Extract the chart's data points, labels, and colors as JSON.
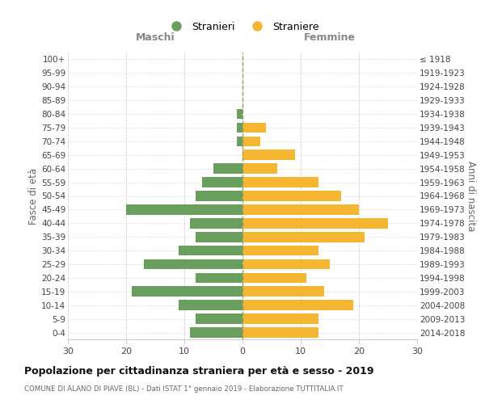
{
  "age_groups": [
    "0-4",
    "5-9",
    "10-14",
    "15-19",
    "20-24",
    "25-29",
    "30-34",
    "35-39",
    "40-44",
    "45-49",
    "50-54",
    "55-59",
    "60-64",
    "65-69",
    "70-74",
    "75-79",
    "80-84",
    "85-89",
    "90-94",
    "95-99",
    "100+"
  ],
  "birth_years": [
    "2014-2018",
    "2009-2013",
    "2004-2008",
    "1999-2003",
    "1994-1998",
    "1989-1993",
    "1984-1988",
    "1979-1983",
    "1974-1978",
    "1969-1973",
    "1964-1968",
    "1959-1963",
    "1954-1958",
    "1949-1953",
    "1944-1948",
    "1939-1943",
    "1934-1938",
    "1929-1933",
    "1924-1928",
    "1919-1923",
    "≤ 1918"
  ],
  "maschi": [
    9,
    8,
    11,
    19,
    8,
    17,
    11,
    8,
    9,
    20,
    8,
    7,
    5,
    0,
    1,
    1,
    1,
    0,
    0,
    0,
    0
  ],
  "femmine": [
    13,
    13,
    19,
    14,
    11,
    15,
    13,
    21,
    25,
    20,
    17,
    13,
    6,
    9,
    3,
    4,
    0,
    0,
    0,
    0,
    0
  ],
  "color_maschi": "#6a9e5e",
  "color_femmine": "#f5b731",
  "title": "Popolazione per cittadinanza straniera per età e sesso - 2019",
  "subtitle": "COMUNE DI ALANO DI PIAVE (BL) - Dati ISTAT 1° gennaio 2019 - Elaborazione TUTTITALIA.IT",
  "xlabel_left": "Maschi",
  "xlabel_right": "Femmine",
  "ylabel_left": "Fasce di età",
  "ylabel_right": "Anni di nascita",
  "legend_maschi": "Stranieri",
  "legend_femmine": "Straniere",
  "xlim": 30,
  "background_color": "#ffffff",
  "grid_color": "#cccccc"
}
